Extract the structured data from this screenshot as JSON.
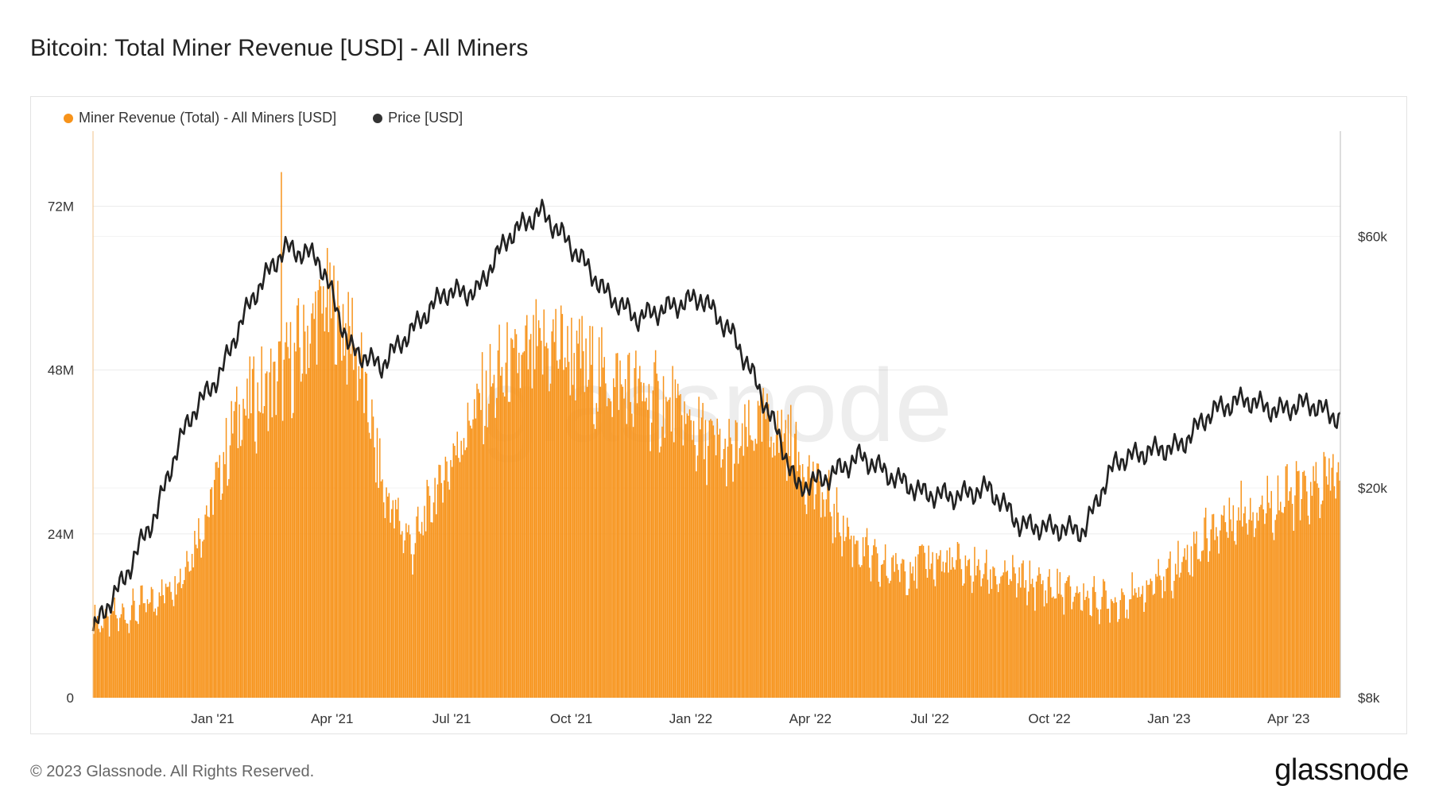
{
  "title": "Bitcoin: Total Miner Revenue [USD] - All Miners",
  "footer": "© 2023 Glassnode. All Rights Reserved.",
  "brand": "glassnode",
  "watermark": "glassnode",
  "colors": {
    "revenue": "#f7931a",
    "price": "#222222",
    "grid": "#ececec"
  },
  "legend": [
    {
      "label": "Miner Revenue (Total) - All Miners [USD]",
      "color": "#f7931a"
    },
    {
      "label": "Price [USD]",
      "color": "#333333"
    }
  ],
  "chart_data": {
    "type": "bar+line",
    "title": "Bitcoin: Total Miner Revenue [USD] - All Miners",
    "x_range": [
      "2020-10-01",
      "2023-05-10"
    ],
    "x_ticks": [
      "Jan '21",
      "Apr '21",
      "Jul '21",
      "Oct '21",
      "Jan '22",
      "Apr '22",
      "Jul '22",
      "Oct '22",
      "Jan '23",
      "Apr '23"
    ],
    "y_left": {
      "ticks": [
        0,
        24,
        48,
        72
      ],
      "tick_labels": [
        "0",
        "24M",
        "48M",
        "72M"
      ],
      "range": [
        0,
        83
      ],
      "unit": "M USD"
    },
    "y_right": {
      "scale": "log",
      "ticks": [
        8,
        20,
        60
      ],
      "tick_labels": [
        "$8k",
        "$20k",
        "$60k"
      ],
      "range": [
        8,
        95
      ],
      "unit": "k USD"
    },
    "series": [
      {
        "name": "Miner Revenue (Total) - All Miners [USD]",
        "type": "bar",
        "axis": "left",
        "monthly_millions": [
          11,
          12,
          14,
          18,
          28,
          42,
          45,
          50,
          58,
          52,
          30,
          22,
          32,
          41,
          47,
          49,
          52,
          48,
          46,
          44,
          42,
          38,
          35,
          40,
          38,
          30,
          24,
          19,
          19,
          20,
          19,
          18,
          17,
          16,
          15,
          14,
          15,
          18,
          22,
          26,
          28,
          29,
          30,
          33
        ],
        "peak_millions": 77
      },
      {
        "name": "Price [USD]",
        "type": "line",
        "axis": "right",
        "monthly_thousands": [
          10.7,
          13.5,
          18,
          27,
          33,
          46,
          57,
          55,
          37,
          34,
          40,
          47,
          47,
          60,
          67,
          57,
          47,
          42,
          44,
          46,
          39,
          29,
          20,
          21,
          23,
          21,
          19.5,
          19.3,
          20,
          17,
          16.8,
          16.6,
          22.5,
          23.5,
          24,
          28,
          29.5,
          28,
          29,
          27
        ]
      }
    ]
  }
}
